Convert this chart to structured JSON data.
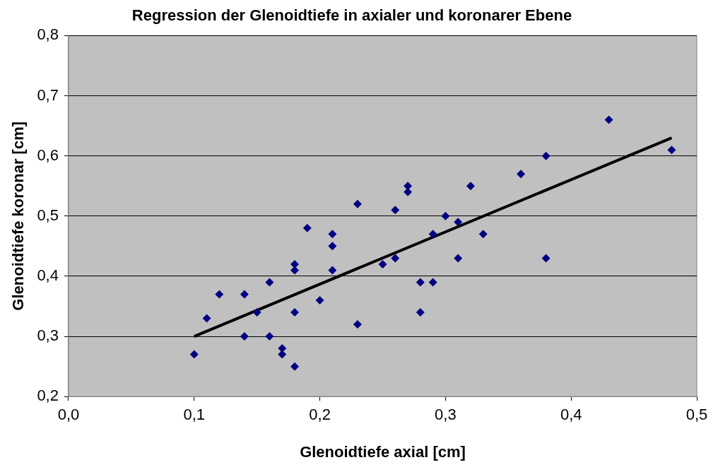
{
  "chart_data": {
    "type": "scatter",
    "title": "Regression der Glenoidtiefe in axialer und koronarer Ebene",
    "xlabel": "Glenoidtiefe axial [cm]",
    "ylabel": "Glenoidtiefe koronar [cm]",
    "x": [
      0.1,
      0.11,
      0.12,
      0.14,
      0.14,
      0.15,
      0.16,
      0.16,
      0.17,
      0.17,
      0.18,
      0.18,
      0.18,
      0.18,
      0.19,
      0.2,
      0.21,
      0.21,
      0.21,
      0.23,
      0.23,
      0.25,
      0.26,
      0.26,
      0.27,
      0.27,
      0.28,
      0.28,
      0.29,
      0.29,
      0.3,
      0.31,
      0.31,
      0.32,
      0.33,
      0.36,
      0.38,
      0.38,
      0.43,
      0.48
    ],
    "series": [
      {
        "color": "#000080",
        "values": [
          0.27,
          0.33,
          0.37,
          0.37,
          0.3,
          0.34,
          0.39,
          0.3,
          0.28,
          0.27,
          0.42,
          0.41,
          0.34,
          0.25,
          0.48,
          0.36,
          0.47,
          0.45,
          0.41,
          0.52,
          0.32,
          0.42,
          0.51,
          0.43,
          0.55,
          0.54,
          0.39,
          0.34,
          0.47,
          0.39,
          0.5,
          0.49,
          0.43,
          0.55,
          0.47,
          0.57,
          0.6,
          0.43,
          0.66,
          0.61
        ]
      },
      {
        "type": "line",
        "color": "#000000",
        "x": [
          0.1,
          0.48
        ],
        "values": [
          0.3,
          0.63
        ],
        "marker": "none"
      }
    ],
    "xlim": [
      0.0,
      0.5
    ],
    "ylim": [
      0.2,
      0.8
    ],
    "xticks": [
      {
        "value": 0.0,
        "label": "0,0"
      },
      {
        "value": 0.1,
        "label": "0,1"
      },
      {
        "value": 0.2,
        "label": "0,2"
      },
      {
        "value": 0.3,
        "label": "0,3"
      },
      {
        "value": 0.4,
        "label": "0,4"
      },
      {
        "value": 0.5,
        "label": "0,5"
      }
    ],
    "yticks": [
      {
        "value": 0.2,
        "label": "0,2"
      },
      {
        "value": 0.3,
        "label": "0,3"
      },
      {
        "value": 0.4,
        "label": "0,4"
      },
      {
        "value": 0.5,
        "label": "0,5"
      },
      {
        "value": 0.6,
        "label": "0,6"
      },
      {
        "value": 0.7,
        "label": "0,7"
      },
      {
        "value": 0.8,
        "label": "0,8"
      }
    ],
    "grid": "y",
    "legend": false,
    "marker": "diamond"
  }
}
